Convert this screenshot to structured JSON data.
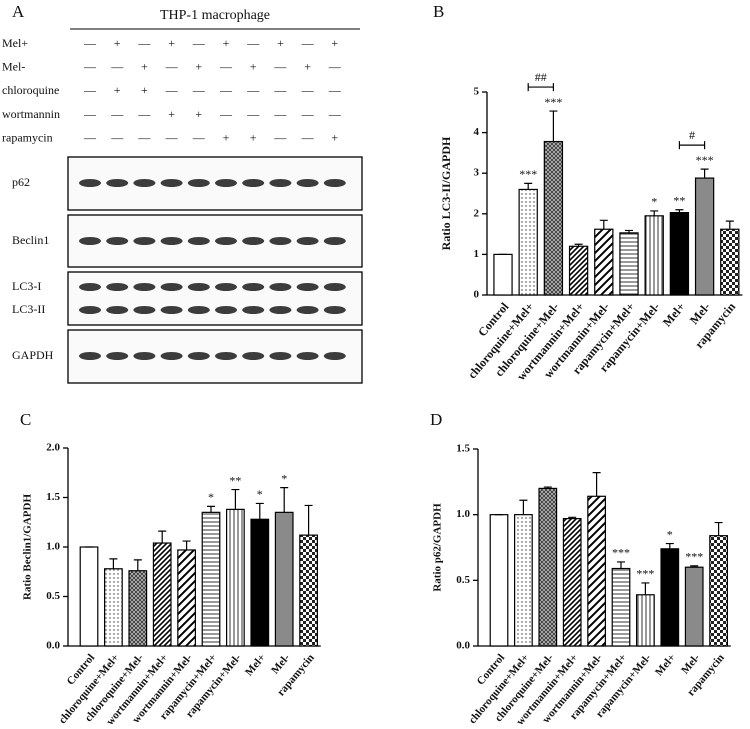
{
  "blot": {
    "label": "A",
    "title": "THP-1 macrophage",
    "conditions": [
      {
        "name": "Mel+",
        "marks": [
          "—",
          "+",
          "—",
          "+",
          "—",
          "+",
          "—",
          "+",
          "—",
          "+"
        ]
      },
      {
        "name": "Mel-",
        "marks": [
          "—",
          "—",
          "+",
          "—",
          "+",
          "—",
          "+",
          "—",
          "+",
          "—"
        ]
      },
      {
        "name": "chloroquine",
        "marks": [
          "—",
          "+",
          "+",
          "—",
          "—",
          "—",
          "—",
          "—",
          "—",
          "—"
        ]
      },
      {
        "name": "wortmannin",
        "marks": [
          "—",
          "—",
          "—",
          "+",
          "+",
          "—",
          "—",
          "—",
          "—",
          "—"
        ]
      },
      {
        "name": "rapamycin",
        "marks": [
          "—",
          "—",
          "—",
          "—",
          "—",
          "+",
          "+",
          "—",
          "—",
          "+"
        ]
      }
    ],
    "bands": [
      "p62",
      "Beclin1",
      "LC3-I",
      "LC3-II",
      "GAPDH"
    ]
  },
  "chart_data": [
    {
      "type": "bar",
      "label": "B",
      "ylabel": "Ratio LC3-II/GAPDH",
      "categories": [
        "Control",
        "chloroquine+Mel+",
        "chloroquine+Mel-",
        "wortmannin+Mel+",
        "wortmannin+Mel-",
        "rapamycin+Mel+",
        "rapamycin+Mel-",
        "Mel+",
        "Mel-",
        "rapamycin"
      ],
      "values": [
        1.0,
        2.6,
        3.78,
        1.2,
        1.62,
        1.53,
        1.95,
        2.03,
        2.88,
        1.62
      ],
      "errors": [
        0,
        0.15,
        0.75,
        0.05,
        0.22,
        0.06,
        0.12,
        0.07,
        0.22,
        0.2
      ],
      "annotations": [
        null,
        "***",
        "***",
        null,
        null,
        null,
        "*",
        "**",
        "***",
        null
      ],
      "brackets": [
        {
          "label": "##",
          "categories": [
            1,
            2
          ]
        },
        {
          "label": "#",
          "categories": [
            7,
            8
          ]
        }
      ],
      "bar_fills": [
        "white",
        "dots",
        "crosshatch",
        "diag-dense",
        "diag-wide",
        "hlines",
        "vlines",
        "black",
        "gray",
        "checker"
      ],
      "ylim": [
        0,
        5
      ],
      "yticks": [
        0,
        1,
        2,
        3,
        4,
        5
      ]
    },
    {
      "type": "bar",
      "label": "C",
      "ylabel": "Ratio Beclin1/GAPDH",
      "categories": [
        "Control",
        "chloroquine+Mel+",
        "chloroquine+Mel-",
        "wortmannin+Mel+",
        "wortmannin+Mel-",
        "rapamycin+Mel+",
        "rapamycin+Mel-",
        "Mel+",
        "Mel-",
        "rapamycin"
      ],
      "values": [
        1.0,
        0.78,
        0.76,
        1.04,
        0.97,
        1.35,
        1.38,
        1.28,
        1.35,
        1.12
      ],
      "errors": [
        0,
        0.1,
        0.11,
        0.12,
        0.09,
        0.06,
        0.2,
        0.16,
        0.25,
        0.3
      ],
      "annotations": [
        null,
        null,
        null,
        null,
        null,
        "*",
        "**",
        "*",
        "*",
        null
      ],
      "bar_fills": [
        "white",
        "dots",
        "crosshatch",
        "diag-dense",
        "diag-wide",
        "hlines",
        "vlines",
        "black",
        "gray",
        "checker"
      ],
      "ylim": [
        0,
        2
      ],
      "yticks": [
        {
          "value": 0,
          "label": "0.0"
        },
        {
          "value": 0.5,
          "label": "0.5"
        },
        {
          "value": 1,
          "label": "1.0"
        },
        {
          "value": 1.5,
          "label": "1.5"
        },
        {
          "value": 2,
          "label": "2.0"
        }
      ]
    },
    {
      "type": "bar",
      "label": "D",
      "ylabel": "Ratio p62/GAPDH",
      "categories": [
        "Control",
        "chloroquine+Mel+",
        "chloroquine+Mel-",
        "wortmannin+Mel+",
        "wortmannin+Mel-",
        "rapamycin+Mel+",
        "rapamycin+Mel-",
        "Mel+",
        "Mel-",
        "rapamycin"
      ],
      "values": [
        1.0,
        1.0,
        1.2,
        0.97,
        1.14,
        0.59,
        0.39,
        0.74,
        0.6,
        0.84
      ],
      "errors": [
        0,
        0.11,
        0.01,
        0.01,
        0.18,
        0.05,
        0.09,
        0.04,
        0.01,
        0.1
      ],
      "annotations": [
        null,
        null,
        null,
        null,
        null,
        "***",
        "***",
        "*",
        "***",
        null
      ],
      "bar_fills": [
        "white",
        "dots",
        "crosshatch",
        "diag-dense",
        "diag-wide",
        "hlines",
        "vlines",
        "black",
        "gray",
        "checker"
      ],
      "ylim": [
        0,
        1.5
      ],
      "yticks": [
        {
          "value": 0,
          "label": "0.0"
        },
        {
          "value": 0.5,
          "label": "0.5"
        },
        {
          "value": 1,
          "label": "1.0"
        },
        {
          "value": 1.5,
          "label": "1.5"
        }
      ]
    }
  ]
}
